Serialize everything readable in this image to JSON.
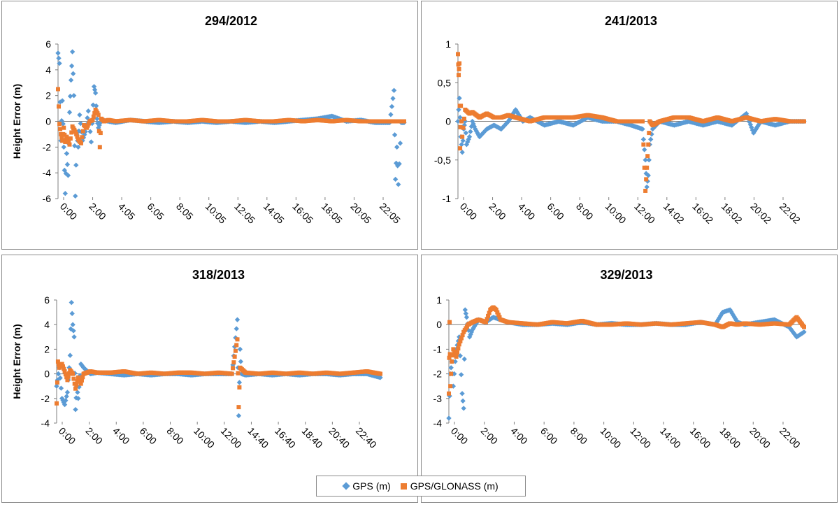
{
  "colors": {
    "gps": "#5b9bd5",
    "glonass": "#ed7d31",
    "axis": "#7f7f7f"
  },
  "legend": {
    "items": [
      "GPS (m)",
      "GPS/GLONASS (m)"
    ],
    "placement": "bottom-center"
  },
  "chart_data": [
    {
      "type": "scatter",
      "title": "294/2012",
      "ylabel": "Height Error (m)",
      "xlabel": "",
      "ylim": [
        -6,
        6
      ],
      "yticks": [
        "6",
        "4",
        "2",
        "0",
        "-2",
        "-4",
        "-6"
      ],
      "xlim": [
        0,
        24
      ],
      "xticks": [
        "0:00",
        "2:00",
        "4:05",
        "6:05",
        "8:05",
        "10:05",
        "12:05",
        "14:05",
        "16:05",
        "18:05",
        "20:05",
        "22:05"
      ],
      "grid": false,
      "series": [
        {
          "name": "GPS (m)",
          "x": [
            0.0,
            0.1,
            0.2,
            0.3,
            0.4,
            0.5,
            0.6,
            0.7,
            0.8,
            0.9,
            1.0,
            1.1,
            1.2,
            1.3,
            1.4,
            1.5,
            1.7,
            1.9,
            2.1,
            2.3,
            2.5,
            2.6,
            2.7,
            2.8,
            3.0,
            3.5,
            4.0,
            5.0,
            6.0,
            7.0,
            8.0,
            9.0,
            10.0,
            11.0,
            12.0,
            13.0,
            14.0,
            15.0,
            16.0,
            17.0,
            18.0,
            19.0,
            20.0,
            21.0,
            22.0,
            23.0,
            23.3,
            23.4,
            23.5,
            23.6,
            23.8,
            24.0
          ],
          "y": [
            5.3,
            4.5,
            -1.5,
            1.6,
            -2.0,
            -5.6,
            -2.5,
            -4.2,
            0.7,
            3.2,
            5.4,
            2.0,
            -5.8,
            -1.0,
            -2.0,
            0.5,
            -1.5,
            -0.8,
            0.8,
            -1.6,
            2.7,
            2.2,
            0.2,
            -0.5,
            0.1,
            0.0,
            -0.1,
            0.1,
            0.0,
            -0.1,
            0.0,
            -0.1,
            0.0,
            -0.1,
            0.0,
            -0.1,
            0.0,
            -0.1,
            0.0,
            0.1,
            0.2,
            0.4,
            0.0,
            0.1,
            -0.1,
            -0.1,
            2.4,
            -4.5,
            -2.0,
            -4.9,
            -0.1,
            -0.1
          ]
        },
        {
          "name": "GPS/GLONASS (m)",
          "x": [
            0.0,
            0.1,
            0.2,
            0.3,
            0.4,
            0.5,
            0.6,
            0.8,
            1.0,
            1.2,
            1.4,
            1.6,
            1.8,
            2.0,
            2.2,
            2.4,
            2.6,
            2.8,
            2.9,
            3.0,
            3.2,
            3.5,
            4.0,
            5.0,
            6.0,
            7.0,
            8.0,
            9.0,
            10.0,
            11.0,
            12.0,
            13.0,
            14.0,
            15.0,
            16.0,
            17.0,
            18.0,
            19.0,
            20.0,
            21.0,
            22.0,
            23.0,
            23.5,
            24.0
          ],
          "y": [
            2.5,
            -0.2,
            -1.0,
            -1.5,
            -0.5,
            -1.6,
            -1.2,
            -1.8,
            -0.4,
            -0.8,
            -1.4,
            -1.7,
            -0.3,
            -0.5,
            0.0,
            0.1,
            0.9,
            0.5,
            -2.0,
            0.2,
            0.0,
            0.1,
            0.0,
            0.1,
            0.0,
            0.1,
            0.0,
            0.0,
            0.1,
            0.0,
            0.0,
            0.1,
            0.0,
            0.0,
            0.1,
            0.0,
            0.1,
            0.0,
            0.1,
            0.0,
            0.0,
            0.0,
            0.0,
            0.0
          ]
        }
      ]
    },
    {
      "type": "scatter",
      "title": "241/2013",
      "ylabel": "",
      "xlabel": "",
      "ylim": [
        -1,
        1
      ],
      "yticks": [
        "1",
        "0,5",
        "0",
        "-0,5",
        "-1"
      ],
      "xlim": [
        0,
        24
      ],
      "xticks": [
        "0:00",
        "2:00",
        "4:00",
        "6:00",
        "8:00",
        "10:00",
        "12:00",
        "14:02",
        "16:02",
        "18:02",
        "20:02",
        "22:02"
      ],
      "grid": false,
      "series": [
        {
          "name": "GPS (m)",
          "x": [
            0.0,
            0.1,
            0.2,
            0.3,
            0.4,
            0.5,
            0.6,
            0.8,
            1.0,
            1.2,
            1.5,
            2.0,
            2.5,
            3.0,
            3.5,
            4.0,
            4.5,
            5.0,
            6.0,
            7.0,
            8.0,
            9.0,
            10.0,
            11.0,
            12.0,
            12.8,
            13.0,
            13.1,
            13.2,
            13.3,
            13.5,
            14.0,
            15.0,
            16.0,
            17.0,
            18.0,
            19.0,
            20.0,
            20.5,
            21.0,
            22.0,
            23.0,
            24.0
          ],
          "y": [
            0.0,
            0.3,
            -0.2,
            -0.4,
            -0.1,
            0.0,
            -0.3,
            -0.2,
            0.0,
            -0.1,
            -0.2,
            -0.1,
            -0.05,
            -0.1,
            0.0,
            0.15,
            0.0,
            0.05,
            -0.05,
            0.0,
            -0.05,
            0.05,
            0.0,
            0.0,
            -0.05,
            -0.1,
            -0.5,
            -0.85,
            -0.7,
            -0.3,
            -0.1,
            0.0,
            -0.05,
            0.0,
            -0.05,
            0.0,
            -0.05,
            0.1,
            -0.15,
            0.0,
            -0.05,
            0.0,
            0.0
          ]
        },
        {
          "name": "GPS/GLONASS (m)",
          "x": [
            0.0,
            0.05,
            0.1,
            0.15,
            0.2,
            0.3,
            0.5,
            0.8,
            1.0,
            1.5,
            2.0,
            2.5,
            3.0,
            3.5,
            4.0,
            5.0,
            6.0,
            7.0,
            8.0,
            9.0,
            10.0,
            11.0,
            12.0,
            12.8,
            13.0,
            13.1,
            13.2,
            13.3,
            13.5,
            14.0,
            15.0,
            16.0,
            17.0,
            18.0,
            19.0,
            20.0,
            21.0,
            22.0,
            23.0,
            24.0
          ],
          "y": [
            0.87,
            0.6,
            0.75,
            -0.35,
            0.2,
            -0.2,
            0.15,
            0.1,
            0.12,
            0.05,
            0.1,
            0.05,
            0.05,
            0.08,
            0.05,
            0.0,
            0.05,
            0.05,
            0.05,
            0.08,
            0.05,
            0.0,
            0.0,
            0.0,
            -0.9,
            -0.6,
            -0.3,
            0.0,
            -0.05,
            0.0,
            0.05,
            0.05,
            0.0,
            0.05,
            0.0,
            0.05,
            0.0,
            0.03,
            0.0,
            0.0
          ]
        }
      ]
    },
    {
      "type": "scatter",
      "title": "318/2013",
      "ylabel": "Height Error (m)",
      "xlabel": "",
      "ylim": [
        -4,
        6
      ],
      "yticks": [
        "6",
        "4",
        "2",
        "0",
        "-2",
        "-4"
      ],
      "xlim": [
        0,
        24
      ],
      "xticks": [
        "0:00",
        "2:00",
        "4:00",
        "6:00",
        "8:00",
        "10:00",
        "12:00",
        "14:40",
        "16:40",
        "18:40",
        "20:40",
        "22:40"
      ],
      "grid": false,
      "series": [
        {
          "name": "GPS (m)",
          "x": [
            0.0,
            0.2,
            0.4,
            0.6,
            0.8,
            1.0,
            1.1,
            1.2,
            1.3,
            1.4,
            1.5,
            1.6,
            1.8,
            2.0,
            2.5,
            3.0,
            4.0,
            5.0,
            6.0,
            7.0,
            8.0,
            9.0,
            10.0,
            11.0,
            12.0,
            13.0,
            13.4,
            13.5,
            13.6,
            13.7,
            14.0,
            15.0,
            16.0,
            17.0,
            18.0,
            19.0,
            20.0,
            21.0,
            22.0,
            23.0,
            24.0
          ],
          "y": [
            -1.0,
            0.5,
            -2.0,
            -2.5,
            -1.5,
            1.5,
            5.8,
            4.0,
            3.0,
            -2.9,
            -1.0,
            -2.0,
            0.8,
            0.5,
            0.0,
            0.1,
            0.0,
            -0.1,
            0.0,
            -0.1,
            0.0,
            0.0,
            -0.1,
            0.0,
            0.0,
            0.0,
            4.4,
            -3.4,
            2.0,
            0.0,
            -0.1,
            0.0,
            -0.1,
            0.0,
            -0.1,
            0.0,
            0.0,
            -0.1,
            0.0,
            0.0,
            -0.3
          ]
        },
        {
          "name": "GPS/GLONASS (m)",
          "x": [
            0.0,
            0.1,
            0.2,
            0.4,
            0.6,
            0.8,
            1.0,
            1.2,
            1.4,
            1.6,
            1.8,
            2.0,
            2.5,
            3.0,
            4.0,
            5.0,
            6.0,
            7.0,
            8.0,
            9.0,
            10.0,
            11.0,
            12.0,
            13.0,
            13.4,
            13.5,
            13.6,
            14.0,
            15.0,
            16.0,
            17.0,
            18.0,
            19.0,
            20.0,
            21.0,
            22.0,
            23.0,
            24.0
          ],
          "y": [
            -2.4,
            1.0,
            0.5,
            0.8,
            0.2,
            -0.5,
            0.3,
            0.0,
            -1.2,
            -0.3,
            -0.8,
            0.0,
            0.2,
            0.1,
            0.1,
            0.2,
            0.0,
            0.1,
            0.0,
            0.1,
            0.1,
            0.0,
            0.1,
            0.0,
            2.8,
            -2.7,
            0.5,
            0.1,
            0.0,
            0.1,
            0.0,
            0.1,
            0.0,
            0.1,
            0.0,
            0.1,
            0.2,
            0.0
          ]
        }
      ]
    },
    {
      "type": "scatter",
      "title": "329/2013",
      "ylabel": "",
      "xlabel": "",
      "ylim": [
        -4,
        1
      ],
      "yticks": [
        "1",
        "0",
        "-1",
        "-2",
        "-3",
        "-4"
      ],
      "xlim": [
        0,
        24
      ],
      "xticks": [
        "0:00",
        "2:00",
        "4:00",
        "6:00",
        "8:00",
        "10:00",
        "12:00",
        "14:00",
        "16:00",
        "18:00",
        "20:00",
        "22:00"
      ],
      "grid": false,
      "series": [
        {
          "name": "GPS (m)",
          "x": [
            0.0,
            0.1,
            0.2,
            0.3,
            0.5,
            0.7,
            0.9,
            1.0,
            1.1,
            1.2,
            1.4,
            1.6,
            1.8,
            2.0,
            2.5,
            3.0,
            3.5,
            4.0,
            5.0,
            6.0,
            7.0,
            8.0,
            9.0,
            10.0,
            11.0,
            12.0,
            13.0,
            14.0,
            15.0,
            16.0,
            17.0,
            18.0,
            18.5,
            19.0,
            19.5,
            20.0,
            21.0,
            22.0,
            23.0,
            23.5,
            24.0
          ],
          "y": [
            -3.8,
            -2.0,
            -1.5,
            -2.5,
            -1.0,
            -0.5,
            -2.8,
            -3.4,
            0.6,
            0.3,
            -0.5,
            -0.2,
            0.0,
            0.2,
            0.1,
            0.3,
            0.2,
            0.1,
            0.0,
            0.0,
            0.05,
            0.0,
            0.1,
            0.0,
            0.05,
            0.0,
            0.0,
            0.05,
            0.0,
            0.0,
            0.1,
            0.0,
            0.5,
            0.6,
            0.1,
            0.0,
            0.1,
            0.2,
            -0.1,
            -0.5,
            -0.3
          ]
        },
        {
          "name": "GPS/GLONASS (m)",
          "x": [
            0.0,
            0.05,
            0.1,
            0.2,
            0.3,
            0.5,
            0.7,
            1.0,
            1.3,
            1.6,
            2.0,
            2.5,
            2.8,
            3.0,
            3.2,
            3.5,
            4.0,
            5.0,
            6.0,
            7.0,
            8.0,
            9.0,
            10.0,
            11.0,
            12.0,
            13.0,
            14.0,
            15.0,
            16.0,
            17.0,
            18.0,
            18.5,
            19.0,
            19.5,
            20.0,
            21.0,
            22.0,
            23.0,
            23.5,
            24.0
          ],
          "y": [
            -2.8,
            0.1,
            -2.5,
            -1.5,
            -1.0,
            -1.3,
            -0.8,
            -0.3,
            0.0,
            0.1,
            0.2,
            0.1,
            0.6,
            0.7,
            0.6,
            0.2,
            0.1,
            0.05,
            0.0,
            0.1,
            0.05,
            0.15,
            0.0,
            0.0,
            0.05,
            0.0,
            0.05,
            0.0,
            0.05,
            0.1,
            0.0,
            -0.1,
            0.05,
            0.0,
            0.05,
            0.0,
            0.05,
            0.0,
            0.3,
            -0.1
          ]
        }
      ]
    }
  ]
}
